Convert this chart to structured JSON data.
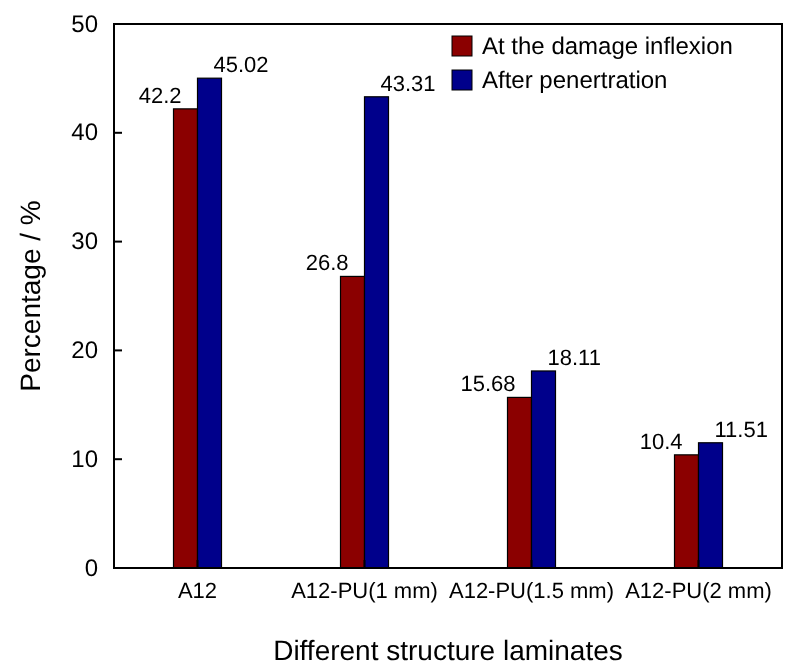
{
  "chart_data": {
    "type": "bar",
    "xlabel": "Different structure laminates",
    "ylabel": "Percentage / %",
    "categories": [
      "A12",
      "A12-PU(1 mm)",
      "A12-PU(1.5 mm)",
      "A12-PU(2 mm)"
    ],
    "series": [
      {
        "name": "At the damage inflexion",
        "color": "#8b0000",
        "values": [
          42.2,
          26.8,
          15.68,
          10.4
        ]
      },
      {
        "name": "After penertration",
        "color": "#00008b",
        "values": [
          45.02,
          43.31,
          18.11,
          11.51
        ]
      }
    ],
    "ylim": [
      0,
      50
    ],
    "yticks": [
      0,
      10,
      20,
      30,
      40,
      50
    ],
    "legend": "top right",
    "data_labels": true,
    "grid": false
  }
}
